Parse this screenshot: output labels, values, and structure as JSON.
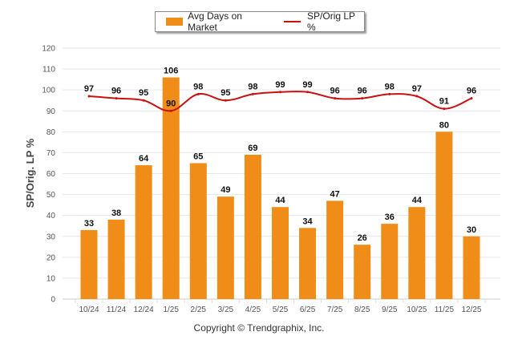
{
  "chart_data": {
    "type": "bar",
    "title": "",
    "xlabel": "",
    "ylabel": "SP/Orig. LP %",
    "ylim": [
      0,
      120
    ],
    "yticks": [
      0,
      10,
      20,
      30,
      40,
      50,
      60,
      70,
      80,
      90,
      100,
      110,
      120
    ],
    "grid": true,
    "legend_position": "top-center",
    "categories": [
      "10/24",
      "11/24",
      "12/24",
      "1/25",
      "2/25",
      "3/25",
      "4/25",
      "5/25",
      "6/25",
      "7/25",
      "8/25",
      "9/25",
      "10/25",
      "11/25",
      "12/25"
    ],
    "series": [
      {
        "name": "Avg Days on Market",
        "type": "bar",
        "color": "#f08c18",
        "values": [
          33,
          38,
          64,
          106,
          65,
          49,
          69,
          44,
          34,
          47,
          26,
          36,
          44,
          80,
          30
        ]
      },
      {
        "name": "SP/Orig LP %",
        "type": "line",
        "color": "#c81010",
        "values": [
          97,
          96,
          95,
          90,
          98,
          95,
          98,
          99,
          99,
          96,
          96,
          98,
          97,
          91,
          96
        ]
      }
    ]
  },
  "legend": {
    "items": [
      "Avg Days on Market",
      "SP/Orig LP %"
    ]
  },
  "footer": {
    "copyright": "Copyright © Trendgraphix, Inc."
  }
}
